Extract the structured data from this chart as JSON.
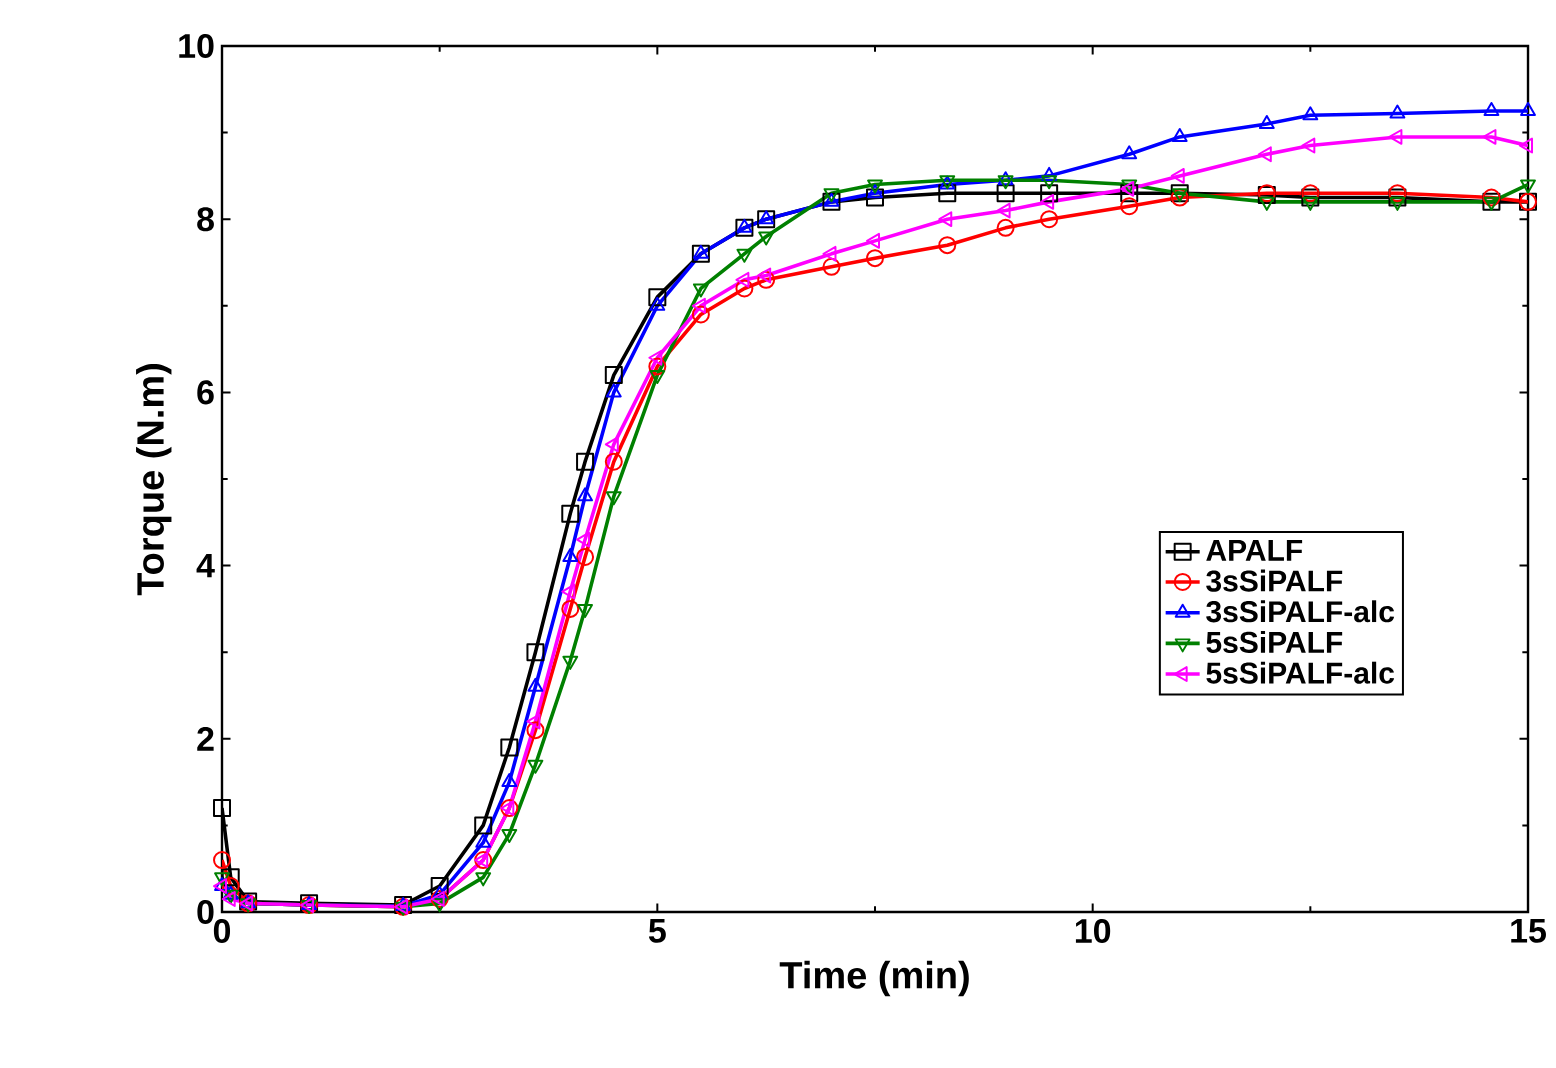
{
  "chart_data": {
    "type": "line",
    "xlabel": "Time (min)",
    "ylabel": "Torque (N.m)",
    "xlim": [
      0,
      15
    ],
    "ylim": [
      0,
      10
    ],
    "xticks": [
      0,
      5,
      10,
      15
    ],
    "yticks": [
      0,
      2,
      4,
      6,
      8,
      10
    ],
    "grid": false,
    "legend": "right",
    "line_style": "solid",
    "x": [
      0,
      0.1,
      0.3,
      1,
      2.08,
      2.5,
      3,
      3.3,
      3.6,
      4.0,
      4.17,
      4.5,
      5,
      5.5,
      6.0,
      6.25,
      7,
      7.5,
      8.33,
      9,
      9.5,
      10.42,
      11,
      12,
      12.5,
      13.5,
      14.58,
      15
    ],
    "series": [
      {
        "name": "APALF",
        "color": "#000000",
        "marker": "square",
        "values": [
          1.2,
          0.4,
          0.12,
          0.1,
          0.08,
          0.3,
          1.0,
          1.9,
          3.0,
          4.6,
          5.2,
          6.2,
          7.1,
          7.6,
          7.9,
          8.0,
          8.2,
          8.25,
          8.3,
          8.3,
          8.3,
          8.3,
          8.3,
          8.28,
          8.25,
          8.25,
          8.2,
          8.2
        ]
      },
      {
        "name": "3sSiPALF",
        "color": "#ff0000",
        "marker": "circle",
        "values": [
          0.6,
          0.3,
          0.1,
          0.08,
          0.06,
          0.15,
          0.6,
          1.2,
          2.1,
          3.5,
          4.1,
          5.2,
          6.3,
          6.9,
          7.2,
          7.3,
          7.45,
          7.55,
          7.7,
          7.9,
          8.0,
          8.15,
          8.25,
          8.3,
          8.3,
          8.3,
          8.25,
          8.2
        ]
      },
      {
        "name": "3sSiPALF-alc",
        "color": "#0000ff",
        "marker": "triangle",
        "values": [
          0.3,
          0.2,
          0.1,
          0.08,
          0.07,
          0.2,
          0.8,
          1.5,
          2.6,
          4.1,
          4.8,
          6.0,
          7.0,
          7.6,
          7.9,
          8.0,
          8.2,
          8.3,
          8.4,
          8.45,
          8.5,
          8.75,
          8.95,
          9.1,
          9.2,
          9.22,
          9.25,
          9.25
        ]
      },
      {
        "name": "5sSiPALF",
        "color": "#008000",
        "marker": "triangle",
        "values": [
          0.4,
          0.2,
          0.1,
          0.08,
          0.06,
          0.1,
          0.4,
          0.9,
          1.7,
          2.9,
          3.5,
          4.8,
          6.2,
          7.2,
          7.6,
          7.8,
          8.3,
          8.4,
          8.45,
          8.45,
          8.45,
          8.4,
          8.3,
          8.2,
          8.2,
          8.2,
          8.2,
          8.4
        ]
      },
      {
        "name": "5sSiPALF-alc",
        "color": "#ff00ff",
        "marker": "triangle",
        "values": [
          0.3,
          0.15,
          0.1,
          0.08,
          0.06,
          0.15,
          0.6,
          1.2,
          2.2,
          3.7,
          4.3,
          5.4,
          6.4,
          7.0,
          7.3,
          7.35,
          7.6,
          7.75,
          8.0,
          8.1,
          8.2,
          8.35,
          8.5,
          8.75,
          8.85,
          8.95,
          8.95,
          8.85
        ]
      }
    ]
  }
}
